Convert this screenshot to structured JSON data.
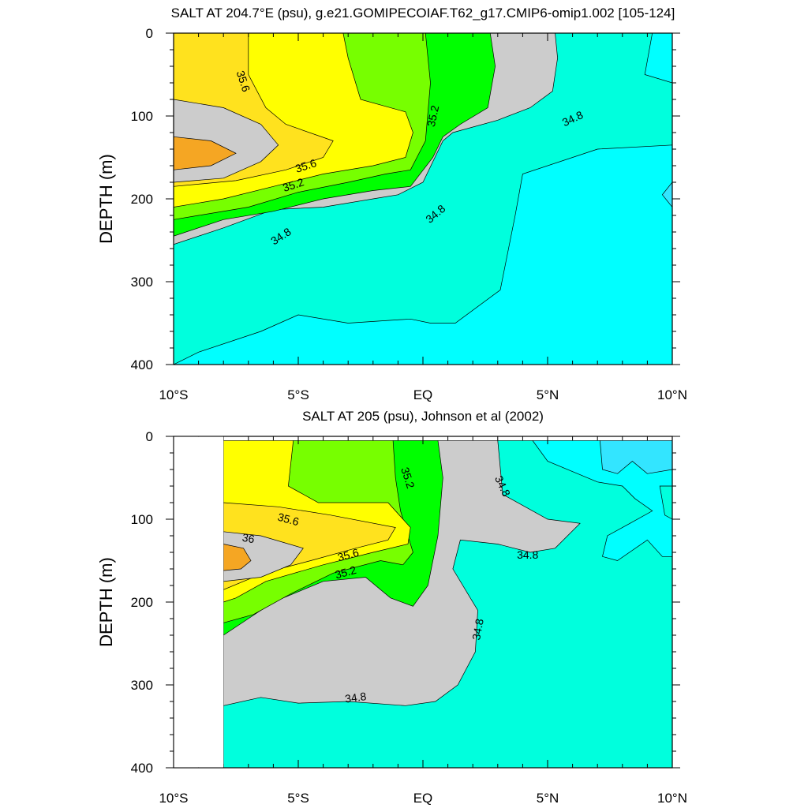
{
  "chart_data": [
    {
      "type": "contour",
      "title": "SALT AT 204.7°E (psu), g.e21.GOMIPECOIAF.T62_g17.CMIP6-omip1.002 [105-124]",
      "ylabel": "DEPTH (m)",
      "xlabel": "",
      "xlim": [
        -10,
        10
      ],
      "ylim": [
        400,
        0
      ],
      "y_reversed": true,
      "x_ticks": [
        -10,
        -5,
        0,
        5,
        10
      ],
      "x_tick_labels": [
        "10°S",
        "5°S",
        "EQ",
        "5°N",
        "10°N"
      ],
      "y_ticks": [
        0,
        100,
        200,
        300,
        400
      ],
      "y_tick_labels": [
        "0",
        "100",
        "200",
        "300",
        "400"
      ],
      "no_data_x_range": null,
      "contour_levels": [
        34.6,
        34.8,
        35.0,
        35.2,
        35.4,
        35.6,
        35.8,
        36.0
      ],
      "fill_colors": {
        "34.6": "#00ffff",
        "34.8": "#00ffdd",
        "35.0": "#00ffaa",
        "35.2": "#00ff00",
        "35.4": "#77ff00",
        "35.6": "#ffff00",
        "35.8": "#ffe21e",
        "36.0": "#ffc43a"
      },
      "regions": [
        {
          "level": 34.8,
          "points": [
            [
              -10,
              0
            ],
            [
              10,
              0
            ],
            [
              10,
              400
            ],
            [
              -10,
              400
            ]
          ]
        },
        {
          "level": 35.0,
          "points": [
            [
              -10,
              0
            ],
            [
              -3.2,
              0
            ],
            [
              0.1,
              0
            ],
            [
              2.7,
              0
            ],
            [
              5.3,
              0
            ],
            [
              5.4,
              30
            ],
            [
              5.2,
              70
            ],
            [
              4.3,
              90
            ],
            [
              3.0,
              105
            ],
            [
              1.2,
              120
            ],
            [
              0.8,
              130
            ],
            [
              0,
              180
            ],
            [
              -1,
              195
            ],
            [
              -2,
              200
            ],
            [
              -4,
              210
            ],
            [
              -6,
              213
            ],
            [
              -8,
              235
            ],
            [
              -10,
              255
            ]
          ]
        },
        {
          "level": 35.2,
          "points": [
            [
              -10,
              0
            ],
            [
              -3.2,
              0
            ],
            [
              0.1,
              0
            ],
            [
              2.7,
              0
            ],
            [
              2.9,
              40
            ],
            [
              2.6,
              90
            ],
            [
              1.5,
              110
            ],
            [
              0.8,
              125
            ],
            [
              0.4,
              150
            ],
            [
              -0.5,
              185
            ],
            [
              -2,
              190
            ],
            [
              -4,
              200
            ],
            [
              -6,
              215
            ],
            [
              -8,
              225
            ],
            [
              -10,
              245
            ]
          ]
        },
        {
          "level": 35.4,
          "points": [
            [
              -10,
              0
            ],
            [
              -3.2,
              0
            ],
            [
              0.1,
              0
            ],
            [
              0.3,
              60
            ],
            [
              0.1,
              130
            ],
            [
              -0.5,
              165
            ],
            [
              -1.5,
              170
            ],
            [
              -3,
              180
            ],
            [
              -5,
              192
            ],
            [
              -7,
              210
            ],
            [
              -9,
              220
            ],
            [
              -10,
              225
            ]
          ]
        },
        {
          "level": 35.6,
          "points": [
            [
              -10,
              0
            ],
            [
              -3.2,
              0
            ],
            [
              -3.0,
              30
            ],
            [
              -2.5,
              80
            ],
            [
              -0.7,
              95
            ],
            [
              -0.4,
              120
            ],
            [
              -0.7,
              150
            ],
            [
              -2,
              160
            ],
            [
              -4,
              170
            ],
            [
              -6,
              185
            ],
            [
              -8,
              200
            ],
            [
              -10,
              210
            ]
          ]
        },
        {
          "level": 35.8,
          "points": [
            [
              -10,
              0
            ],
            [
              -7,
              0
            ],
            [
              -7,
              50
            ],
            [
              -6.3,
              90
            ],
            [
              -5.5,
              110
            ],
            [
              -3.6,
              130
            ],
            [
              -4,
              150
            ],
            [
              -5.5,
              165
            ],
            [
              -7.5,
              178
            ],
            [
              -10,
              185
            ]
          ]
        },
        {
          "level": 36.0,
          "points": [
            [
              -10,
              80
            ],
            [
              -8,
              90
            ],
            [
              -6.5,
              110
            ],
            [
              -5.8,
              135
            ],
            [
              -6.5,
              155
            ],
            [
              -8,
              175
            ],
            [
              -10,
              180
            ]
          ]
        },
        {
          "level": 36.2,
          "points": [
            [
              -10,
              125
            ],
            [
              -8.5,
              130
            ],
            [
              -7.5,
              145
            ],
            [
              -8.5,
              160
            ],
            [
              -10,
              165
            ]
          ]
        },
        {
          "level": 34.6,
          "points": [
            [
              10,
              135
            ],
            [
              7,
              140
            ],
            [
              4,
              170
            ],
            [
              3.7,
              220
            ],
            [
              3.1,
              310
            ],
            [
              1.3,
              350
            ],
            [
              0.3,
              350
            ],
            [
              -0.5,
              345
            ],
            [
              -3,
              350
            ],
            [
              -5,
              340
            ],
            [
              -6.5,
              360
            ],
            [
              -9,
              385
            ],
            [
              -10,
              400
            ],
            [
              10,
              400
            ]
          ]
        },
        {
          "level": 34.6,
          "points": [
            [
              10,
              0
            ],
            [
              9.2,
              0
            ],
            [
              8.9,
              50
            ],
            [
              10,
              60
            ]
          ]
        },
        {
          "level": 34.4,
          "points": [
            [
              10,
              180
            ],
            [
              9.6,
              195
            ],
            [
              10,
              210
            ]
          ]
        }
      ],
      "contour_labels": [
        {
          "text": "35.6",
          "x": -7.2,
          "y": 58,
          "angle": 72
        },
        {
          "text": "35.2",
          "x": 0.4,
          "y": 100,
          "angle": -78
        },
        {
          "text": "34.8",
          "x": 6.0,
          "y": 103,
          "angle": -25
        },
        {
          "text": "35.6",
          "x": -4.7,
          "y": 160,
          "angle": -18
        },
        {
          "text": "35.2",
          "x": -5.2,
          "y": 183,
          "angle": -18
        },
        {
          "text": "34.8",
          "x": 0.5,
          "y": 218,
          "angle": -40
        },
        {
          "text": "34.8",
          "x": -5.7,
          "y": 245,
          "angle": -33
        }
      ]
    },
    {
      "type": "contour",
      "title": "SALT AT 205 (psu), Johnson et al (2002)",
      "ylabel": "DEPTH (m)",
      "xlabel": "",
      "xlim": [
        -10,
        10
      ],
      "ylim": [
        400,
        0
      ],
      "y_reversed": true,
      "x_ticks": [
        -10,
        -5,
        0,
        5,
        10
      ],
      "x_tick_labels": [
        "10°S",
        "5°S",
        "EQ",
        "5°N",
        "10°N"
      ],
      "y_ticks": [
        0,
        100,
        200,
        300,
        400
      ],
      "y_tick_labels": [
        "0",
        "100",
        "200",
        "300",
        "400"
      ],
      "no_data_x_range": [
        -10,
        -8
      ],
      "contour_levels": [
        34.6,
        34.8,
        35.0,
        35.2,
        35.4,
        35.6,
        35.8,
        36.0
      ],
      "fill_colors": {
        "34.6": "#00ffff",
        "34.8": "#00ffdd",
        "35.0": "#00ffaa",
        "35.2": "#00ff00",
        "35.4": "#77ff00",
        "35.6": "#ffff00",
        "35.8": "#ffe21e",
        "36.0": "#ffc43a"
      },
      "regions": [
        {
          "level": 34.8,
          "points": [
            [
              -8,
              5
            ],
            [
              10,
              5
            ],
            [
              10,
              400
            ],
            [
              -8,
              400
            ]
          ]
        },
        {
          "level": 35.0,
          "points": [
            [
              -8,
              5
            ],
            [
              3.0,
              5
            ],
            [
              3.2,
              70
            ],
            [
              5.0,
              100
            ],
            [
              6.3,
              105
            ],
            [
              5.3,
              135
            ],
            [
              4.3,
              140
            ],
            [
              3.0,
              130
            ],
            [
              1.5,
              125
            ],
            [
              1.2,
              160
            ],
            [
              2.2,
              210
            ],
            [
              2.1,
              260
            ],
            [
              1.4,
              300
            ],
            [
              0.5,
              320
            ],
            [
              -0.7,
              325
            ],
            [
              -3,
              320
            ],
            [
              -5,
              322
            ],
            [
              -6.5,
              315
            ],
            [
              -8,
              325
            ]
          ]
        },
        {
          "level": 35.2,
          "points": [
            [
              -8,
              5
            ],
            [
              0.6,
              5
            ],
            [
              0.8,
              50
            ],
            [
              0.6,
              120
            ],
            [
              0.2,
              180
            ],
            [
              -0.4,
              205
            ],
            [
              -1.3,
              195
            ],
            [
              -2.3,
              170
            ],
            [
              -4,
              175
            ],
            [
              -6,
              200
            ],
            [
              -8,
              240
            ]
          ]
        },
        {
          "level": 35.4,
          "points": [
            [
              -8,
              5
            ],
            [
              -1.2,
              5
            ],
            [
              -1.1,
              50
            ],
            [
              -0.9,
              90
            ],
            [
              -0.6,
              120
            ],
            [
              -0.4,
              140
            ],
            [
              -0.8,
              155
            ],
            [
              -1.7,
              150
            ],
            [
              -3.6,
              165
            ],
            [
              -5.3,
              190
            ],
            [
              -6.8,
              215
            ],
            [
              -8,
              225
            ]
          ]
        },
        {
          "level": 35.6,
          "points": [
            [
              -8,
              5
            ],
            [
              -5.2,
              5
            ],
            [
              -5.4,
              60
            ],
            [
              -4.2,
              80
            ],
            [
              -1.4,
              80
            ],
            [
              -0.5,
              110
            ],
            [
              -0.6,
              130
            ],
            [
              -2,
              140
            ],
            [
              -4,
              155
            ],
            [
              -6.3,
              175
            ],
            [
              -7.5,
              195
            ],
            [
              -8,
              200
            ]
          ]
        },
        {
          "level": 35.8,
          "points": [
            [
              -8,
              80
            ],
            [
              -5.8,
              85
            ],
            [
              -3.7,
              95
            ],
            [
              -1.1,
              110
            ],
            [
              -1.4,
              125
            ],
            [
              -2.7,
              135
            ],
            [
              -4.5,
              150
            ],
            [
              -6.4,
              165
            ],
            [
              -8,
              185
            ]
          ]
        },
        {
          "level": 36.0,
          "points": [
            [
              -8,
              115
            ],
            [
              -6.5,
              120
            ],
            [
              -4.8,
              135
            ],
            [
              -5.3,
              155
            ],
            [
              -6.5,
              170
            ],
            [
              -8,
              175
            ]
          ]
        },
        {
          "level": 36.2,
          "points": [
            [
              -8,
              130
            ],
            [
              -7.2,
              135
            ],
            [
              -6.9,
              150
            ],
            [
              -7.3,
              160
            ],
            [
              -8,
              162
            ]
          ]
        },
        {
          "level": 34.6,
          "points": [
            [
              4.4,
              5
            ],
            [
              10,
              5
            ],
            [
              10,
              60
            ],
            [
              9.5,
              60
            ],
            [
              9.7,
              95
            ],
            [
              10,
              100
            ],
            [
              10,
              145
            ],
            [
              9.6,
              145
            ],
            [
              9.0,
              125
            ],
            [
              7.8,
              150
            ],
            [
              7.2,
              145
            ],
            [
              7.4,
              120
            ],
            [
              8.3,
              105
            ],
            [
              9.2,
              90
            ],
            [
              8.5,
              75
            ],
            [
              8.0,
              60
            ],
            [
              7.0,
              55
            ],
            [
              5.0,
              30
            ]
          ]
        },
        {
          "level": 34.4,
          "points": [
            [
              7.1,
              5
            ],
            [
              10,
              5
            ],
            [
              10,
              40
            ],
            [
              9.0,
              45
            ],
            [
              8.4,
              30
            ],
            [
              7.8,
              45
            ],
            [
              7.2,
              40
            ]
          ]
        }
      ],
      "contour_labels": [
        {
          "text": "35.2",
          "x": -0.6,
          "y": 50,
          "angle": 72
        },
        {
          "text": "34.8",
          "x": 3.2,
          "y": 60,
          "angle": 65
        },
        {
          "text": "35.6",
          "x": -5.4,
          "y": 100,
          "angle": 15
        },
        {
          "text": "36",
          "x": -7.0,
          "y": 123,
          "angle": 10
        },
        {
          "text": "35.6",
          "x": -3.0,
          "y": 143,
          "angle": -15
        },
        {
          "text": "35.2",
          "x": -3.1,
          "y": 164,
          "angle": -15
        },
        {
          "text": "34.8",
          "x": 4.2,
          "y": 143,
          "angle": 0
        },
        {
          "text": "34.8",
          "x": 2.2,
          "y": 233,
          "angle": -80
        },
        {
          "text": "34.8",
          "x": -2.7,
          "y": 315,
          "angle": -8
        }
      ]
    }
  ]
}
